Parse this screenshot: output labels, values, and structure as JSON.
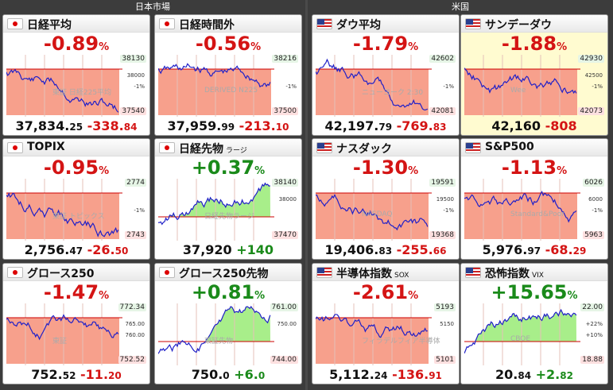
{
  "sections": {
    "japan": "日本市場",
    "us": "米国"
  },
  "cards": [
    {
      "name": "日経平均",
      "flag": "jp",
      "pct": "-0.89",
      "price_int": "37,834.",
      "price_dec": "25",
      "chg_int": "-338.",
      "chg_dec": "84",
      "dir": "dn",
      "y_top": "38130",
      "y_mid1": "38000",
      "y_mid2": "-1%",
      "y_bot": "37540",
      "wm": "東証 日経225平均"
    },
    {
      "name": "日経時間外",
      "flag": "jp",
      "pct": "-0.56",
      "price_int": "37,959.",
      "price_dec": "99",
      "chg_int": "-213.",
      "chg_dec": "10",
      "dir": "dn",
      "y_top": "38216",
      "y_mid1": "",
      "y_mid2": "-1%",
      "y_bot": "37500",
      "wm": "DERIVED N225"
    },
    {
      "name": "ダウ平均",
      "flag": "us",
      "pct": "-1.79",
      "price_int": "42,197.",
      "price_dec": "79",
      "chg_int": "-769.",
      "chg_dec": "83",
      "dir": "dn",
      "y_top": "42602",
      "y_mid1": "",
      "y_mid2": "-1%",
      "y_bot": "42081",
      "wm": "ニューヨーク 2:30"
    },
    {
      "name": "サンデーダウ",
      "flag": "us",
      "pct": "-1.88",
      "price_int": "42,160",
      "price_dec": "",
      "chg_int": "-808",
      "chg_dec": "",
      "dir": "dn",
      "y_top": "42930",
      "y_mid1": "42500",
      "y_mid2": "-1%",
      "y_bot": "42073",
      "wm": "Wee",
      "hl": true
    },
    {
      "name": "TOPIX",
      "flag": "jp",
      "pct": "-0.95",
      "price_int": "2,756.",
      "price_dec": "47",
      "chg_int": "-26.",
      "chg_dec": "50",
      "dir": "dn",
      "y_top": "2774",
      "y_mid1": "",
      "y_mid2": "-1%",
      "y_bot": "2743",
      "wm": "東証 トピックス"
    },
    {
      "name": "日経先物",
      "sub": "ラージ",
      "flag": "jp",
      "pct": "+0.37",
      "price_int": "37,920",
      "price_dec": "",
      "chg_int": "+140",
      "chg_dec": "",
      "dir": "up",
      "y_top": "38140",
      "y_mid1": "38000",
      "y_mid2": "",
      "y_bot": "37470",
      "wm": "日経先物ラージ"
    },
    {
      "name": "ナスダック",
      "flag": "us",
      "pct": "-1.30",
      "price_int": "19,406.",
      "price_dec": "83",
      "chg_int": "-255.",
      "chg_dec": "66",
      "dir": "dn",
      "y_top": "19591",
      "y_mid1": "19500",
      "y_mid2": "-1%",
      "y_bot": "19368",
      "wm": "NASDAQ"
    },
    {
      "name": "S&P500",
      "flag": "us",
      "pct": "-1.13",
      "price_int": "5,976.",
      "price_dec": "97",
      "chg_int": "-68.",
      "chg_dec": "29",
      "dir": "dn",
      "y_top": "6026",
      "y_mid1": "6000",
      "y_mid2": "-1%",
      "y_bot": "5963",
      "wm": "Standard&Poor"
    },
    {
      "name": "グロース250",
      "flag": "jp",
      "pct": "-1.47",
      "price_int": "752.",
      "price_dec": "52",
      "chg_int": "-11.",
      "chg_dec": "20",
      "dir": "dn",
      "y_top": "772.34",
      "y_mid1": "765.00",
      "y_mid2": "760.00",
      "y_bot": "752.52",
      "wm": "東証"
    },
    {
      "name": "グロース250先物",
      "flag": "jp",
      "pct": "+0.81",
      "price_int": "750.",
      "price_dec": "0",
      "chg_int": "+6.",
      "chg_dec": "0",
      "dir": "up",
      "y_top": "761.00",
      "y_mid1": "750.00",
      "y_mid2": "",
      "y_bot": "744.00",
      "wm": "東証先物"
    },
    {
      "name": "半導体指数",
      "sub": "SOX",
      "flag": "us",
      "pct": "-2.61",
      "price_int": "5,112.",
      "price_dec": "24",
      "chg_int": "-136.",
      "chg_dec": "91",
      "dir": "dn",
      "y_top": "5193",
      "y_mid1": "5150",
      "y_mid2": "",
      "y_bot": "5101",
      "wm": "フィラデルフィア半導体"
    },
    {
      "name": "恐怖指数",
      "sub": "VIX",
      "flag": "us",
      "pct": "+15.65",
      "price_int": "20.",
      "price_dec": "84",
      "chg_int": "+2.",
      "chg_dec": "82",
      "dir": "up",
      "y_top": "22.00",
      "y_mid1": "+22%",
      "y_mid2": "+10%",
      "y_bot": "18.88",
      "wm": "CBOE"
    }
  ],
  "pct_unit": "%"
}
